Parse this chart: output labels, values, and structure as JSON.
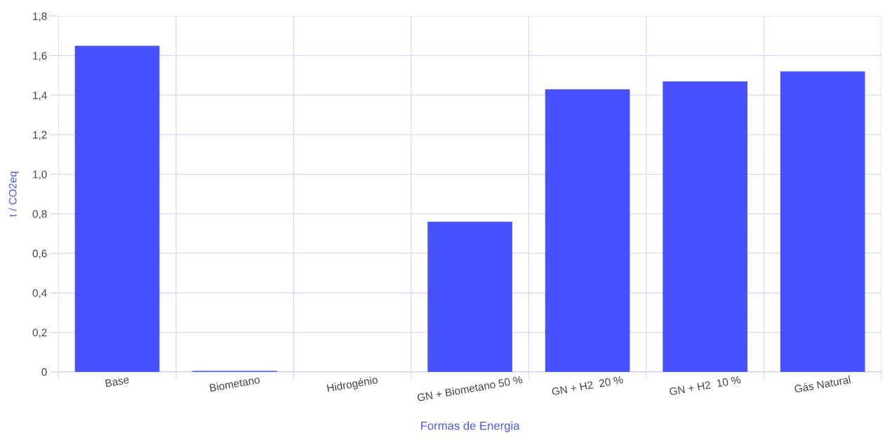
{
  "chart_data": {
    "type": "bar",
    "xlabel": "Formas de Energia",
    "ylabel": "t / CO2eq",
    "categories": [
      "Base",
      "Biometano",
      "Hidrogénio",
      "GN + Biometano 50 %",
      "GN + H2  20 %",
      "GN + H2  10 %",
      "Gás Natural"
    ],
    "values": [
      1.65,
      0.005,
      0,
      0.76,
      1.43,
      1.47,
      1.52
    ],
    "color": "#4851ff",
    "ylim": [
      0,
      1.8
    ],
    "yticks": [
      0,
      {
        "value": 0.2,
        "label": "0,2"
      },
      {
        "value": 0.4,
        "label": "0,4"
      },
      {
        "value": 0.6,
        "label": "0,6"
      },
      {
        "value": 0.8,
        "label": "0,8"
      },
      {
        "value": 1.0,
        "label": "1,0"
      },
      {
        "value": 1.2,
        "label": "1,2"
      },
      {
        "value": 1.4,
        "label": "1,4"
      },
      {
        "value": 1.6,
        "label": "1,6"
      },
      {
        "value": 1.8,
        "label": "1,8"
      }
    ],
    "grid": true
  }
}
